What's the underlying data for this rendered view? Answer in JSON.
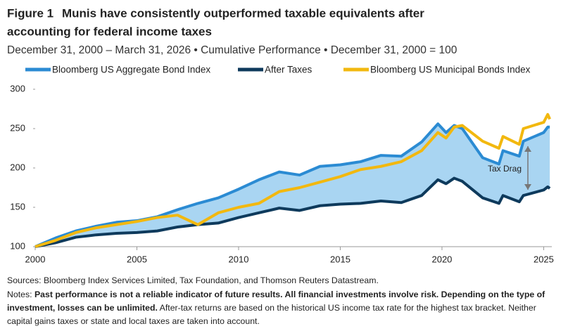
{
  "chart_data": {
    "type": "line",
    "figure_label": "Figure 1",
    "title_lines": [
      "Munis have consistently outperformed taxable equivalents after",
      "accounting for federal income taxes"
    ],
    "subtitle": "December 31, 2000 – March 31, 2026 • Cumulative Performance • December 31, 2000 = 100",
    "x": [
      2000,
      2001,
      2002,
      2003,
      2004,
      2005,
      2006,
      2007,
      2008,
      2009,
      2010,
      2011,
      2012,
      2013,
      2014,
      2015,
      2016,
      2017,
      2018,
      2019,
      2019.8,
      2020.2,
      2020.6,
      2021,
      2022,
      2022.8,
      2023,
      2023.8,
      2024,
      2025,
      2025.2,
      2025.3
    ],
    "series": [
      {
        "name": "Bloomberg US Aggregate Bond Index",
        "color": "#2b8bd3",
        "values": [
          100,
          111,
          120,
          126,
          131,
          133,
          138,
          147,
          155,
          162,
          173,
          185,
          195,
          191,
          202,
          204,
          208,
          216,
          215,
          233,
          256,
          245,
          254,
          250,
          213,
          205,
          222,
          215,
          234,
          245,
          252,
          252
        ]
      },
      {
        "name": "After Taxes",
        "color": "#0e3a5c",
        "values": [
          100,
          105,
          112,
          115,
          117,
          118,
          120,
          125,
          128,
          130,
          137,
          143,
          149,
          146,
          152,
          154,
          155,
          158,
          156,
          165,
          185,
          180,
          187,
          183,
          162,
          155,
          165,
          157,
          165,
          172,
          176,
          174
        ]
      },
      {
        "name": "Bloomberg US Municipal Bonds Index",
        "color": "#f2b80f",
        "values": [
          100,
          108,
          118,
          124,
          128,
          132,
          137,
          140,
          128,
          143,
          150,
          155,
          170,
          175,
          182,
          189,
          198,
          202,
          208,
          222,
          245,
          238,
          252,
          254,
          234,
          225,
          240,
          230,
          250,
          258,
          268,
          262
        ]
      }
    ],
    "area_color": "#a9d5f2",
    "annotation": "Tax Drag",
    "xlim": [
      2000,
      2025.4
    ],
    "xticks": [
      2000,
      2005,
      2010,
      2015,
      2020,
      2025
    ],
    "ylim": [
      100,
      300
    ],
    "yticks": [
      100,
      150,
      200,
      250,
      300
    ],
    "sources": "Sources: Bloomberg Index Services Limited, Tax Foundation, and Thomson Reuters Datastream.",
    "notes_label": "Notes:",
    "notes_bold": "Past performance is not a reliable indicator of future results. All financial investments involve risk. Depending on the type of investment, losses can be unlimited.",
    "notes_text": "After-tax returns are based on the historical US income tax rate for the highest tax bracket. Neither capital gains taxes or state and local taxes are taken into account."
  }
}
